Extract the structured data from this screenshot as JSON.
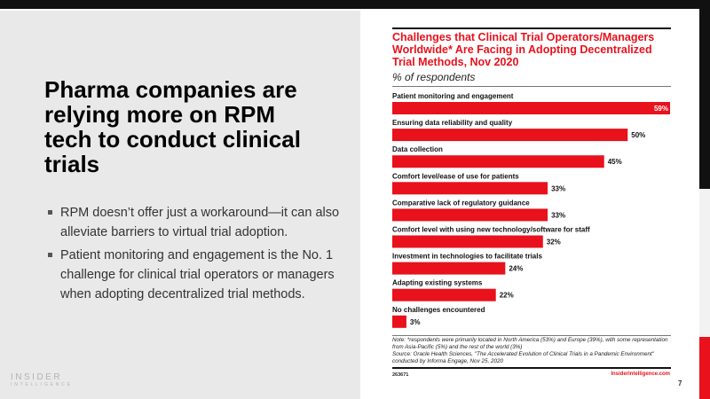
{
  "slide": {
    "headline": "Pharma companies are relying more on RPM tech to conduct clinical trials",
    "bullets": [
      "RPM doesn’t offer just a workaround—it can also alleviate barriers to virtual trial adoption.",
      "Patient monitoring and engagement is the No. 1 challenge for clinical trial operators or managers when adopting decentralized trial methods."
    ],
    "logo_line1": "INSIDER",
    "logo_line2": "INTELLIGENCE",
    "page_number": "7"
  },
  "colors": {
    "accent": "#e8111c",
    "dark": "#111111",
    "panel": "#e9e9e9"
  },
  "chart_data": {
    "type": "bar",
    "orientation": "horizontal",
    "title": "Challenges that Clinical Trial Operators/Managers Worldwide* Are Facing in Adopting Decentralized Trial Methods, Nov 2020",
    "subtitle": "% of respondents",
    "categories": [
      "Patient monitoring and engagement",
      "Ensuring data reliability and quality",
      "Data collection",
      "Comfort level/ease of use for patients",
      "Comparative lack of regulatory guidance",
      "Comfort level with using new technology/software for staff",
      "Investment in technologies to facilitate trials",
      "Adapting existing systems",
      "No challenges encountered"
    ],
    "values": [
      59,
      50,
      45,
      33,
      33,
      32,
      24,
      22,
      3
    ],
    "value_labels": [
      "59%",
      "50%",
      "45%",
      "33%",
      "33%",
      "32%",
      "24%",
      "22%",
      "3%"
    ],
    "xlim": [
      0,
      59
    ],
    "unit": "%",
    "grid": false,
    "legend": "none",
    "note": "Note: *respondents were primarily located in North America (53%) and Europe (39%), with some representation from Asia-Pacific (5%) and the rest of the world (3%)",
    "source": "Source: Oracle Health Sciences, \"The Accelerated Evolution of Clinical Trials in a Pandemic Environment\" conducted by Informa Engage, Nov 25, 2020",
    "chart_id": "263671",
    "brand": "InsiderIntelligence.com"
  }
}
